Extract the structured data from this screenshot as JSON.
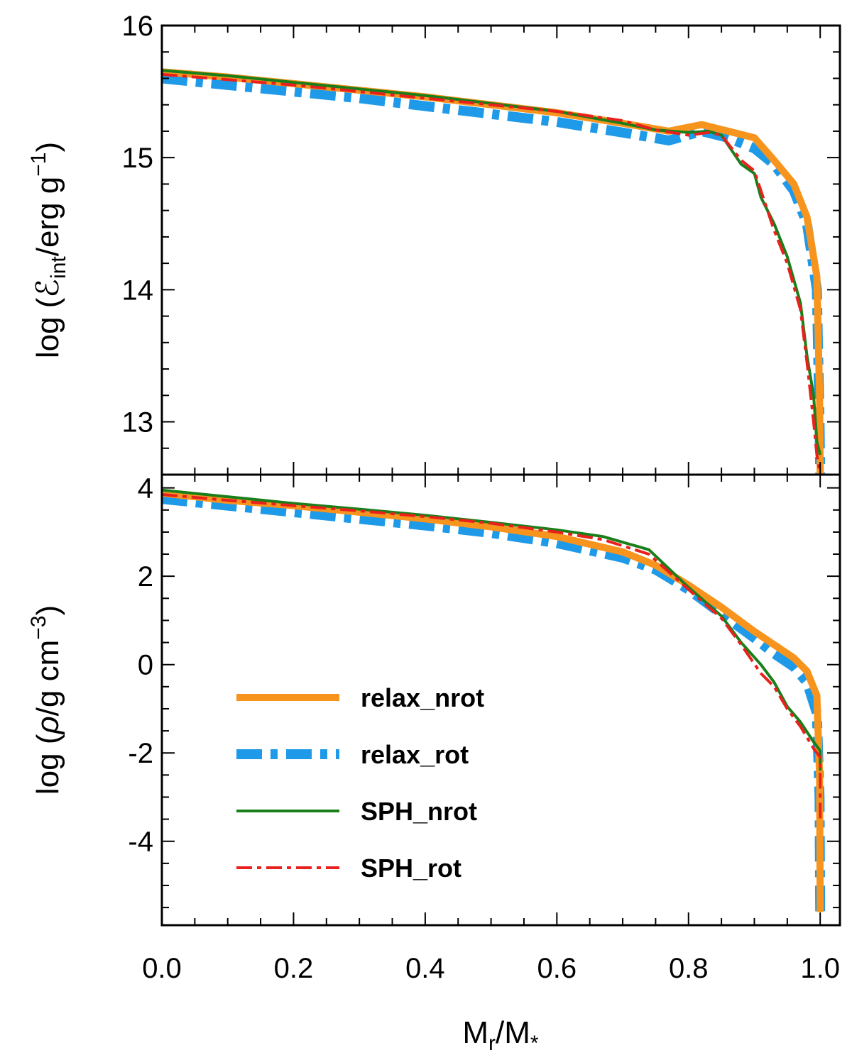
{
  "chart_data": [
    {
      "type": "line",
      "panel": "top",
      "ylabel": "log  (ℰint/erg g⁻¹)",
      "ylabel_parts": {
        "prefix": "log",
        "symbol": "ℰ",
        "sub": "int",
        "unit": "/erg g",
        "sup": "−1"
      },
      "xlim": [
        0.0,
        1.03
      ],
      "ylim": [
        12.6,
        16.0
      ],
      "yticks": [
        13,
        14,
        15,
        16
      ],
      "ytick_labels": [
        "13",
        "14",
        "15",
        "16"
      ],
      "series": [
        {
          "name": "relax_nrot",
          "color": "#f7941d",
          "style": "solid",
          "width": 10,
          "x": [
            0.0,
            0.1,
            0.2,
            0.3,
            0.4,
            0.5,
            0.6,
            0.7,
            0.77,
            0.82,
            0.86,
            0.9,
            0.93,
            0.96,
            0.98,
            0.995,
            0.999,
            1.0
          ],
          "y": [
            15.65,
            15.61,
            15.56,
            15.51,
            15.46,
            15.4,
            15.34,
            15.26,
            15.2,
            15.25,
            15.2,
            15.15,
            14.98,
            14.8,
            14.55,
            14.1,
            13.2,
            12.6
          ]
        },
        {
          "name": "relax_rot",
          "color": "#1e9ae8",
          "style": "dashdot",
          "width": 14,
          "x": [
            0.0,
            0.1,
            0.2,
            0.3,
            0.4,
            0.5,
            0.6,
            0.7,
            0.77,
            0.82,
            0.86,
            0.9,
            0.93,
            0.96,
            0.98,
            0.995,
            0.999,
            1.0
          ],
          "y": [
            15.6,
            15.55,
            15.5,
            15.45,
            15.39,
            15.33,
            15.27,
            15.19,
            15.13,
            15.2,
            15.15,
            15.07,
            14.95,
            14.75,
            14.5,
            14.0,
            13.0,
            12.6
          ]
        },
        {
          "name": "SPH_nrot",
          "color": "#1a7f1a",
          "style": "solid",
          "width": 4,
          "x": [
            0.0,
            0.1,
            0.2,
            0.3,
            0.4,
            0.5,
            0.6,
            0.7,
            0.75,
            0.8,
            0.83,
            0.85,
            0.88,
            0.9,
            0.91,
            0.93,
            0.95,
            0.97,
            0.98,
            0.99,
            0.995,
            1.0
          ],
          "y": [
            15.66,
            15.62,
            15.57,
            15.52,
            15.47,
            15.41,
            15.35,
            15.26,
            15.21,
            15.19,
            15.2,
            15.17,
            14.95,
            14.88,
            14.7,
            14.5,
            14.25,
            13.9,
            13.5,
            13.2,
            12.85,
            12.75
          ]
        },
        {
          "name": "SPH_rot",
          "color": "#e8211c",
          "style": "dashdot",
          "width": 4,
          "x": [
            0.0,
            0.1,
            0.2,
            0.3,
            0.4,
            0.5,
            0.6,
            0.7,
            0.75,
            0.8,
            0.83,
            0.85,
            0.88,
            0.9,
            0.91,
            0.93,
            0.95,
            0.97,
            0.98,
            0.99,
            0.995,
            1.0
          ],
          "y": [
            15.63,
            15.59,
            15.55,
            15.5,
            15.45,
            15.4,
            15.35,
            15.28,
            15.21,
            15.17,
            15.19,
            15.17,
            14.98,
            14.9,
            14.75,
            14.45,
            14.2,
            13.85,
            13.45,
            13.0,
            12.75,
            12.6
          ]
        }
      ]
    },
    {
      "type": "line",
      "panel": "bottom",
      "ylabel": "log  (ρ/g cm⁻³)",
      "ylabel_parts": {
        "prefix": "log",
        "symbol": "ρ",
        "unit": "/g cm",
        "sup": "−3"
      },
      "xlabel": "Mr/M*",
      "xlabel_parts": {
        "a": "M",
        "a_sub": "r",
        "b": "/M",
        "b_sub": "*"
      },
      "xlim": [
        0.0,
        1.03
      ],
      "ylim": [
        -5.9,
        4.3
      ],
      "xticks": [
        0.0,
        0.2,
        0.4,
        0.6,
        0.8,
        1.0
      ],
      "xtick_labels": [
        "0.0",
        "0.2",
        "0.4",
        "0.6",
        "0.8",
        "1.0"
      ],
      "yticks": [
        -4,
        -2,
        0,
        2,
        4
      ],
      "ytick_labels": [
        "-4",
        "-2",
        "0",
        "2",
        "4"
      ],
      "legend_position": "lower-left",
      "series": [
        {
          "name": "relax_nrot",
          "color": "#f7941d",
          "style": "solid",
          "width": 10,
          "x": [
            0.0,
            0.1,
            0.2,
            0.3,
            0.4,
            0.5,
            0.6,
            0.7,
            0.75,
            0.8,
            0.85,
            0.9,
            0.93,
            0.96,
            0.98,
            0.995,
            0.999,
            1.0
          ],
          "y": [
            3.88,
            3.72,
            3.6,
            3.45,
            3.3,
            3.12,
            2.9,
            2.55,
            2.25,
            1.8,
            1.3,
            0.75,
            0.45,
            0.15,
            -0.15,
            -0.7,
            -2.5,
            -5.6
          ]
        },
        {
          "name": "relax_rot",
          "color": "#1e9ae8",
          "style": "dashdot",
          "width": 14,
          "x": [
            0.0,
            0.1,
            0.2,
            0.3,
            0.4,
            0.5,
            0.6,
            0.7,
            0.75,
            0.8,
            0.85,
            0.9,
            0.93,
            0.96,
            0.98,
            0.995,
            0.999,
            1.0
          ],
          "y": [
            3.75,
            3.6,
            3.45,
            3.3,
            3.15,
            2.98,
            2.75,
            2.42,
            2.15,
            1.7,
            1.15,
            0.6,
            0.25,
            -0.05,
            -0.4,
            -1.1,
            -3.0,
            -5.6
          ]
        },
        {
          "name": "SPH_nrot",
          "color": "#1a7f1a",
          "style": "solid",
          "width": 4,
          "x": [
            0.0,
            0.1,
            0.2,
            0.3,
            0.4,
            0.5,
            0.6,
            0.67,
            0.74,
            0.8,
            0.85,
            0.88,
            0.91,
            0.93,
            0.95,
            0.97,
            0.99,
            1.0,
            1.0
          ],
          "y": [
            3.95,
            3.8,
            3.65,
            3.52,
            3.38,
            3.22,
            3.05,
            2.9,
            2.6,
            1.75,
            1.1,
            0.5,
            0.0,
            -0.4,
            -0.95,
            -1.3,
            -1.75,
            -1.95,
            -2.4
          ]
        },
        {
          "name": "SPH_rot",
          "color": "#e8211c",
          "style": "dashdot",
          "width": 4,
          "x": [
            0.0,
            0.1,
            0.2,
            0.3,
            0.4,
            0.5,
            0.6,
            0.67,
            0.74,
            0.8,
            0.85,
            0.88,
            0.91,
            0.93,
            0.95,
            0.97,
            0.99,
            1.0,
            1.0
          ],
          "y": [
            3.85,
            3.72,
            3.6,
            3.48,
            3.35,
            3.2,
            3.0,
            2.83,
            2.5,
            1.7,
            1.05,
            0.45,
            -0.2,
            -0.5,
            -1.0,
            -1.4,
            -1.9,
            -2.1,
            -3.5
          ]
        }
      ]
    }
  ]
}
